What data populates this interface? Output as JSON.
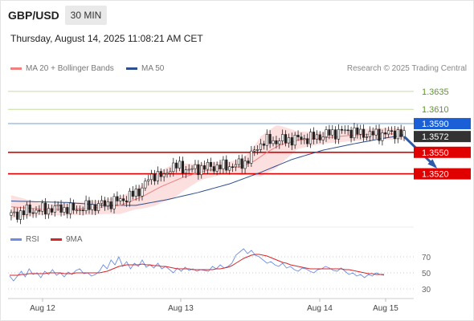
{
  "header": {
    "symbol": "GBP/USD",
    "timeframe": "30 MIN",
    "datetime": "Thursday, August 14, 2025 11:08:21 AM CET"
  },
  "legend": {
    "ma20_label": "MA 20 + Bollinger Bands",
    "ma50_label": "MA 50",
    "ma20_color": "#f08080",
    "ma50_color": "#2e4f8f",
    "research": "Research © 2025 Trading Central"
  },
  "rsi_legend": {
    "rsi_label": "RSI",
    "ma9_label": "9MA",
    "rsi_color": "#6b8de3",
    "ma9_color": "#d62728"
  },
  "chart_data": [
    {
      "type": "candlestick",
      "ylim": [
        1.3449,
        1.3655
      ],
      "x_ticks": [
        "Aug 12",
        "Aug 13",
        "Aug 14",
        "Aug 15"
      ],
      "levels": [
        {
          "value": "1.3635",
          "color": "#7cb342",
          "style": "solid-light"
        },
        {
          "value": "1.3610",
          "color": "#7cb342",
          "style": "solid-light"
        },
        {
          "value": "1.3590",
          "color": "#1a5fd6",
          "style": "resistance"
        },
        {
          "value": "1.3572",
          "color": "#333333",
          "style": "current"
        },
        {
          "value": "1.3550",
          "color": "#e00000",
          "style": "target"
        },
        {
          "value": "1.3520",
          "color": "#e00000",
          "style": "target"
        }
      ],
      "close_path": [
        [
          0,
          1.3462
        ],
        [
          5,
          1.3468
        ],
        [
          10,
          1.347
        ],
        [
          16,
          1.3472
        ],
        [
          20,
          1.347
        ],
        [
          25,
          1.3474
        ],
        [
          30,
          1.3478
        ],
        [
          34,
          1.3482
        ],
        [
          38,
          1.3488
        ],
        [
          42,
          1.35
        ],
        [
          44,
          1.3512
        ],
        [
          46,
          1.352
        ],
        [
          49,
          1.3515
        ],
        [
          51,
          1.353
        ],
        [
          54,
          1.353
        ],
        [
          57,
          1.3525
        ],
        [
          60,
          1.3528
        ],
        [
          64,
          1.353
        ],
        [
          68,
          1.353
        ],
        [
          72,
          1.3532
        ],
        [
          75,
          1.3536
        ],
        [
          77,
          1.3545
        ],
        [
          79,
          1.3558
        ],
        [
          81,
          1.3565
        ],
        [
          85,
          1.3566
        ],
        [
          89,
          1.3568
        ],
        [
          93,
          1.3569
        ],
        [
          97,
          1.357
        ],
        [
          100,
          1.3574
        ],
        [
          104,
          1.3578
        ],
        [
          108,
          1.358
        ],
        [
          112,
          1.3576
        ],
        [
          116,
          1.3575
        ],
        [
          120,
          1.3576
        ],
        [
          124,
          1.3578
        ],
        [
          126,
          1.3572
        ]
      ],
      "ma20_path": [
        [
          0,
          1.3474
        ],
        [
          12,
          1.347
        ],
        [
          25,
          1.3472
        ],
        [
          35,
          1.3476
        ],
        [
          42,
          1.3488
        ],
        [
          48,
          1.3502
        ],
        [
          55,
          1.3515
        ],
        [
          62,
          1.3524
        ],
        [
          68,
          1.3528
        ],
        [
          74,
          1.353
        ],
        [
          78,
          1.3538
        ],
        [
          82,
          1.355
        ],
        [
          86,
          1.356
        ],
        [
          92,
          1.3567
        ],
        [
          100,
          1.357
        ],
        [
          110,
          1.3574
        ],
        [
          120,
          1.3576
        ],
        [
          126,
          1.3575
        ]
      ],
      "bb_width_path": [
        [
          0,
          0.0016
        ],
        [
          10,
          0.0008
        ],
        [
          30,
          0.001
        ],
        [
          40,
          0.0014
        ],
        [
          46,
          0.0022
        ],
        [
          52,
          0.0024
        ],
        [
          60,
          0.0012
        ],
        [
          70,
          0.0008
        ],
        [
          76,
          0.0014
        ],
        [
          80,
          0.0028
        ],
        [
          85,
          0.003
        ],
        [
          92,
          0.0012
        ],
        [
          100,
          0.0008
        ],
        [
          126,
          0.0008
        ]
      ],
      "ma50_path": [
        [
          0,
          1.3482
        ],
        [
          18,
          1.348
        ],
        [
          30,
          1.3476
        ],
        [
          40,
          1.3476
        ],
        [
          50,
          1.3484
        ],
        [
          60,
          1.3494
        ],
        [
          70,
          1.3506
        ],
        [
          80,
          1.3522
        ],
        [
          90,
          1.354
        ],
        [
          100,
          1.3553
        ],
        [
          110,
          1.3562
        ],
        [
          120,
          1.357
        ],
        [
          126,
          1.3574
        ]
      ],
      "forecast": {
        "from": [
          126,
          1.3572
        ],
        "to": [
          136,
          1.353
        ]
      }
    },
    {
      "type": "line",
      "name": "RSI",
      "ylim": [
        20,
        80
      ],
      "y_ticks": [
        "70",
        "50",
        "30"
      ],
      "rsi": [
        46,
        40,
        46,
        52,
        45,
        55,
        48,
        50,
        44,
        52,
        48,
        54,
        47,
        50,
        45,
        51,
        48,
        53,
        55,
        49,
        50,
        46,
        48,
        52,
        60,
        55,
        66,
        60,
        70,
        58,
        64,
        55,
        62,
        58,
        66,
        57,
        60,
        56,
        62,
        55,
        58,
        54,
        50,
        56,
        52,
        57,
        53,
        55,
        52,
        54,
        53,
        52,
        58,
        55,
        60,
        56,
        58,
        62,
        72,
        76,
        80,
        74,
        78,
        72,
        70,
        66,
        62,
        64,
        60,
        58,
        62,
        56,
        58,
        54,
        52,
        56,
        55,
        52,
        50,
        54,
        55,
        58,
        56,
        53,
        52,
        56,
        52,
        48,
        50,
        46,
        48,
        44,
        48,
        46,
        50,
        48,
        47
      ],
      "ma9": [
        47,
        47,
        47,
        48,
        48,
        49,
        49,
        49,
        49,
        49,
        50,
        50,
        50,
        50,
        49,
        49,
        49,
        50,
        50,
        50,
        50,
        50,
        50,
        50,
        51,
        52,
        54,
        56,
        58,
        59,
        60,
        60,
        60,
        60,
        61,
        60,
        60,
        59,
        59,
        58,
        58,
        57,
        56,
        55,
        55,
        55,
        55,
        54,
        54,
        54,
        54,
        54,
        54,
        55,
        55,
        56,
        57,
        59,
        62,
        65,
        68,
        70,
        72,
        73,
        73,
        72,
        71,
        69,
        67,
        65,
        63,
        62,
        60,
        59,
        58,
        57,
        56,
        55,
        55,
        55,
        55,
        55,
        55,
        55,
        55,
        55,
        54,
        54,
        53,
        52,
        51,
        50,
        49,
        49,
        48,
        48,
        48
      ]
    }
  ]
}
